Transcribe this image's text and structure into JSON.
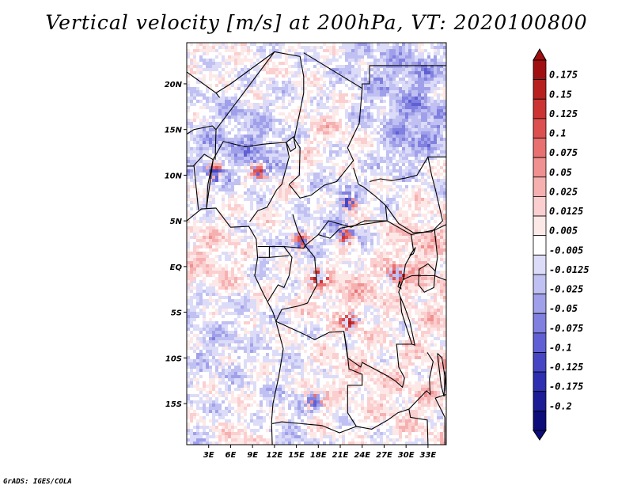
{
  "chart_data": {
    "type": "heatmap",
    "title": "Vertical velocity [m/s] at 200hPa, VT: 2020100800",
    "variable": "Vertical velocity",
    "units": "m/s",
    "level": "200hPa",
    "valid_time": "2020100800",
    "lon_range": [
      0,
      35.5
    ],
    "lat_range": [
      -19.5,
      24.5
    ],
    "x_ticks": [
      3,
      6,
      9,
      12,
      15,
      18,
      21,
      24,
      27,
      30,
      33
    ],
    "x_tick_labels": [
      "3E",
      "6E",
      "9E",
      "12E",
      "15E",
      "18E",
      "21E",
      "24E",
      "27E",
      "30E",
      "33E"
    ],
    "y_ticks": [
      20,
      15,
      10,
      5,
      0,
      -5,
      -10,
      -15
    ],
    "y_tick_labels": [
      "20N",
      "15N",
      "10N",
      "5N",
      "EQ",
      "5S",
      "10S",
      "15S"
    ],
    "colorbar": {
      "levels": [
        "0.175",
        "0.15",
        "0.125",
        "0.1",
        "0.075",
        "0.05",
        "0.025",
        "0.0125",
        "0.005",
        "-0.005",
        "-0.0125",
        "-0.025",
        "-0.05",
        "-0.075",
        "-0.1",
        "-0.125",
        "-0.175",
        "-0.2"
      ],
      "colors": [
        "#a01010",
        "#b82020",
        "#cc3333",
        "#dd5050",
        "#e87070",
        "#f09090",
        "#f6b0b0",
        "#fbcfcf",
        "#fde8e8",
        "#ffffff",
        "#dcdcf8",
        "#c0c0f2",
        "#a0a0ea",
        "#8080e0",
        "#6060d4",
        "#4646c4",
        "#2e2eb0",
        "#1c1c96",
        "#0c0c7a"
      ]
    }
  },
  "credit": "GrADS: IGES/COLA"
}
